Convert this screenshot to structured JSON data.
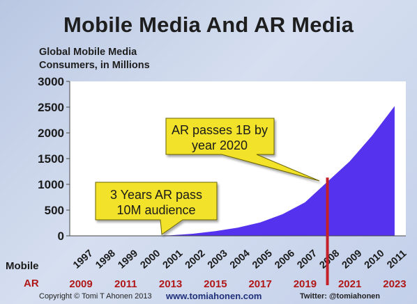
{
  "header": {
    "title": "Mobile Media And AR Media",
    "subtitle_line1": "Global Mobile Media",
    "subtitle_line2": "Consumers, in Millions"
  },
  "chart_data": {
    "type": "area",
    "title": "Mobile Media And AR Media",
    "ylabel": "Global Mobile Media Consumers, in Millions",
    "ylim": [
      0,
      3000
    ],
    "yticks": [
      0,
      500,
      1000,
      1500,
      2000,
      2500,
      3000
    ],
    "grid": false,
    "row_labels": {
      "mobile": "Mobile",
      "ar": "AR"
    },
    "categories": [
      "1997",
      "1998",
      "1999",
      "2000",
      "2001",
      "2002",
      "2003",
      "2004",
      "2005",
      "2006",
      "2007",
      "2008",
      "2009",
      "2010",
      "2011"
    ],
    "ar_labels": [
      "2009",
      "",
      "2011",
      "",
      "2013",
      "",
      "2015",
      "",
      "2017",
      "",
      "2019",
      "",
      "2021",
      "",
      "2023"
    ],
    "series": [
      {
        "values": [
          0,
          0,
          0,
          0,
          10,
          40,
          90,
          160,
          260,
          420,
          650,
          1050,
          1450,
          1950,
          2520
        ]
      }
    ],
    "marker_category": "2008",
    "annotations": [
      {
        "text_line1": "AR passes 1B by",
        "text_line2": "year 2020"
      },
      {
        "text_line1": "3 Years AR pass",
        "text_line2": "10M audience"
      }
    ],
    "colors": {
      "area": "#5533ee",
      "marker": "#c4202a",
      "callout_fill": "#f2e22a",
      "ar_text": "#b01818"
    }
  },
  "footer": {
    "copyright": "Copyright © Tomi T Ahonen 2013",
    "site": "www.tomiahonen.com",
    "twitter": "Twitter: @tomiahonen"
  }
}
